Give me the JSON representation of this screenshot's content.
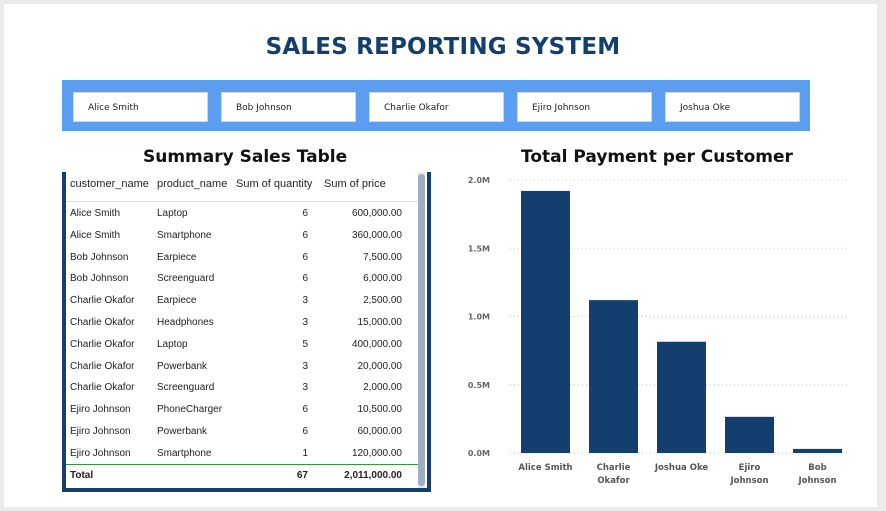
{
  "title": "SALES REPORTING SYSTEM",
  "slicer": {
    "items": [
      "Alice Smith",
      "Bob Johnson",
      "Charlie Okafor",
      "Ejiro Johnson",
      "Joshua Oke"
    ]
  },
  "table": {
    "title": "Summary Sales Table",
    "columns": [
      "customer_name",
      "product_name",
      "Sum of quantity",
      "Sum of price"
    ],
    "rows": [
      [
        "Alice Smith",
        "Laptop",
        "6",
        "600,000.00"
      ],
      [
        "Alice Smith",
        "Smartphone",
        "6",
        "360,000.00"
      ],
      [
        "Bob Johnson",
        "Earpiece",
        "6",
        "7,500.00"
      ],
      [
        "Bob Johnson",
        "Screenguard",
        "6",
        "6,000.00"
      ],
      [
        "Charlie Okafor",
        "Earpiece",
        "3",
        "2,500.00"
      ],
      [
        "Charlie Okafor",
        "Headphones",
        "3",
        "15,000.00"
      ],
      [
        "Charlie Okafor",
        "Laptop",
        "5",
        "400,000.00"
      ],
      [
        "Charlie Okafor",
        "Powerbank",
        "3",
        "20,000.00"
      ],
      [
        "Charlie Okafor",
        "Screenguard",
        "3",
        "2,000.00"
      ],
      [
        "Ejiro Johnson",
        "PhoneCharger",
        "6",
        "10,500.00"
      ],
      [
        "Ejiro Johnson",
        "Powerbank",
        "6",
        "60,000.00"
      ],
      [
        "Ejiro Johnson",
        "Smartphone",
        "1",
        "120,000.00"
      ]
    ],
    "total": [
      "Total",
      "",
      "67",
      "2,011,000.00"
    ]
  },
  "colors": {
    "navy": "#123f6e",
    "slicer_bg": "#5b9ef0"
  },
  "chart_data": {
    "type": "bar",
    "title": "Total Payment per Customer",
    "categories": [
      "Alice Smith",
      "Charlie Okafor",
      "Joshua Oke",
      "Ejiro Johnson",
      "Bob Johnson"
    ],
    "category_lines": [
      [
        "Alice Smith"
      ],
      [
        "Charlie",
        "Okafor"
      ],
      [
        "Joshua Oke"
      ],
      [
        "Ejiro",
        "Johnson"
      ],
      [
        "Bob",
        "Johnson"
      ]
    ],
    "values": [
      1920000,
      1120000,
      815000,
      265000,
      30000
    ],
    "ylim": [
      0,
      2000000
    ],
    "yticks": [
      0,
      500000,
      1000000,
      1500000,
      2000000
    ],
    "ytick_labels": [
      "0.0M",
      "0.5M",
      "1.0M",
      "1.5M",
      "2.0M"
    ],
    "xlabel": "",
    "ylabel": "",
    "grid": true
  }
}
